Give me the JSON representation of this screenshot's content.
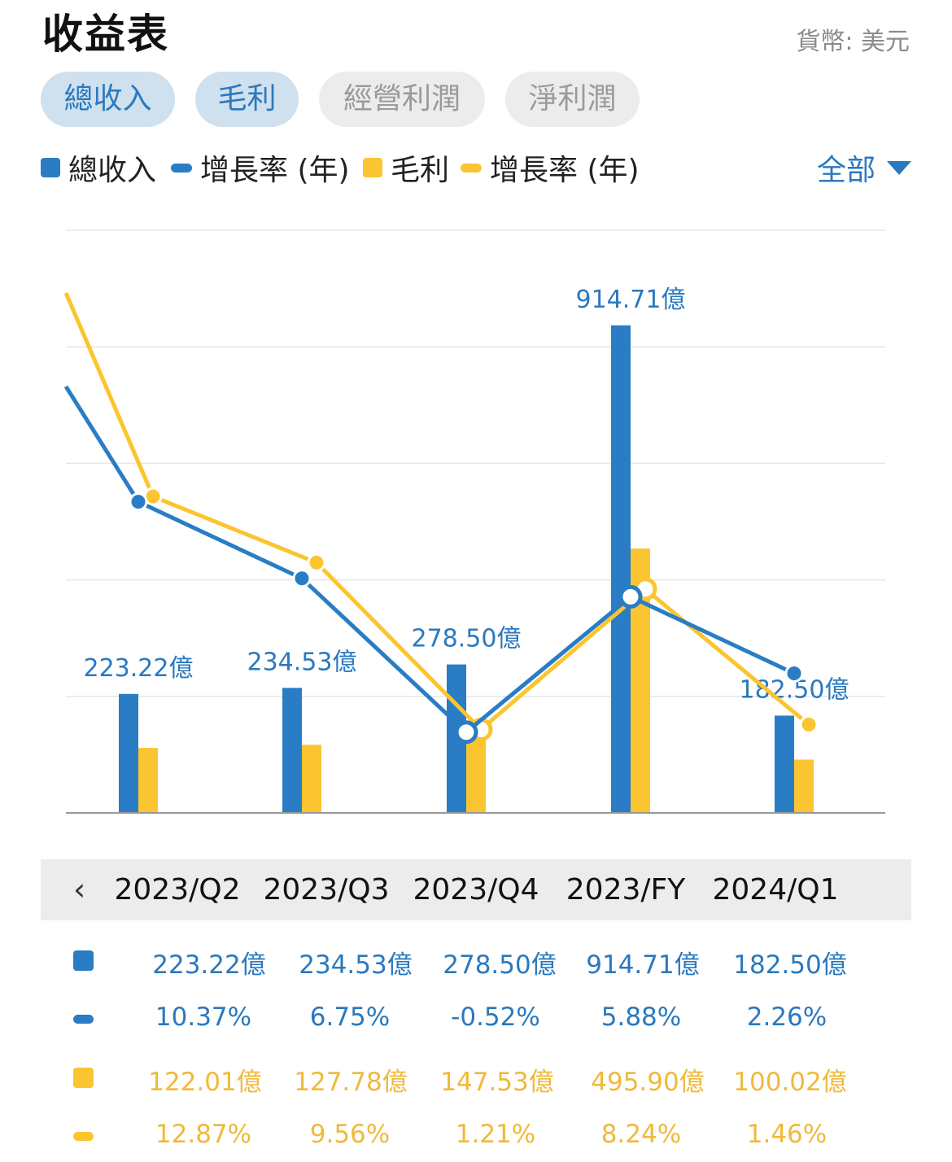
{
  "header": {
    "title": "收益表",
    "currency": "貨幣: 美元"
  },
  "tabs": [
    {
      "label": "總收入",
      "active": true
    },
    {
      "label": "毛利",
      "active": true
    },
    {
      "label": "經營利潤",
      "active": false
    },
    {
      "label": "淨利潤",
      "active": false
    }
  ],
  "legend": {
    "items": [
      {
        "label": "總收入",
        "shape": "box",
        "color": "#2a7dc4"
      },
      {
        "label": "增長率 (年)",
        "shape": "line",
        "color": "#2a7dc4"
      },
      {
        "label": "毛利",
        "shape": "box",
        "color": "#fbc531"
      },
      {
        "label": "增長率 (年)",
        "shape": "line",
        "color": "#fbc531"
      }
    ],
    "filter_label": "全部"
  },
  "colors": {
    "blue": "#2a7dc4",
    "yellow": "#fbc531",
    "text_blue": "#2a79bf",
    "text_yellow": "#f0b93a"
  },
  "chart_data": {
    "type": "bar",
    "categories": [
      "2023/Q2",
      "2023/Q3",
      "2023/Q4",
      "2023/FY",
      "2024/Q1"
    ],
    "series": [
      {
        "name": "總收入",
        "kind": "bar",
        "values": [
          223.22,
          234.53,
          278.5,
          914.71,
          182.5
        ],
        "labels": [
          "223.22億",
          "234.53億",
          "278.50億",
          "914.71億",
          "182.50億"
        ]
      },
      {
        "name": "毛利",
        "kind": "bar",
        "values": [
          122.01,
          127.78,
          147.53,
          495.9,
          100.02
        ]
      },
      {
        "name": "增長率 (年)",
        "kind": "line",
        "values": [
          10.37,
          6.75,
          -0.52,
          5.88,
          2.26
        ]
      },
      {
        "name": "增長率 (年)",
        "kind": "line",
        "values": [
          12.87,
          9.56,
          1.21,
          8.24,
          1.46
        ]
      }
    ],
    "grid": true
  },
  "table": {
    "periods": [
      "2023/Q2",
      "2023/Q3",
      "2023/Q4",
      "2023/FY",
      "2024/Q1"
    ],
    "rows": [
      {
        "shape": "box",
        "color": "#2a7dc4",
        "text_color": "#2a79bf",
        "values": [
          "223.22億",
          "234.53億",
          "278.50億",
          "914.71億",
          "182.50億"
        ]
      },
      {
        "shape": "line",
        "color": "#2a7dc4",
        "text_color": "#2a79bf",
        "values": [
          "10.37%",
          "6.75%",
          "-0.52%",
          "5.88%",
          "2.26%"
        ]
      },
      {
        "shape": "box",
        "color": "#fbc531",
        "text_color": "#f0b93a",
        "values": [
          "122.01億",
          "127.78億",
          "147.53億",
          "495.90億",
          "100.02億"
        ]
      },
      {
        "shape": "line",
        "color": "#fbc531",
        "text_color": "#f0b93a",
        "values": [
          "12.87%",
          "9.56%",
          "1.21%",
          "8.24%",
          "1.46%"
        ]
      }
    ]
  }
}
